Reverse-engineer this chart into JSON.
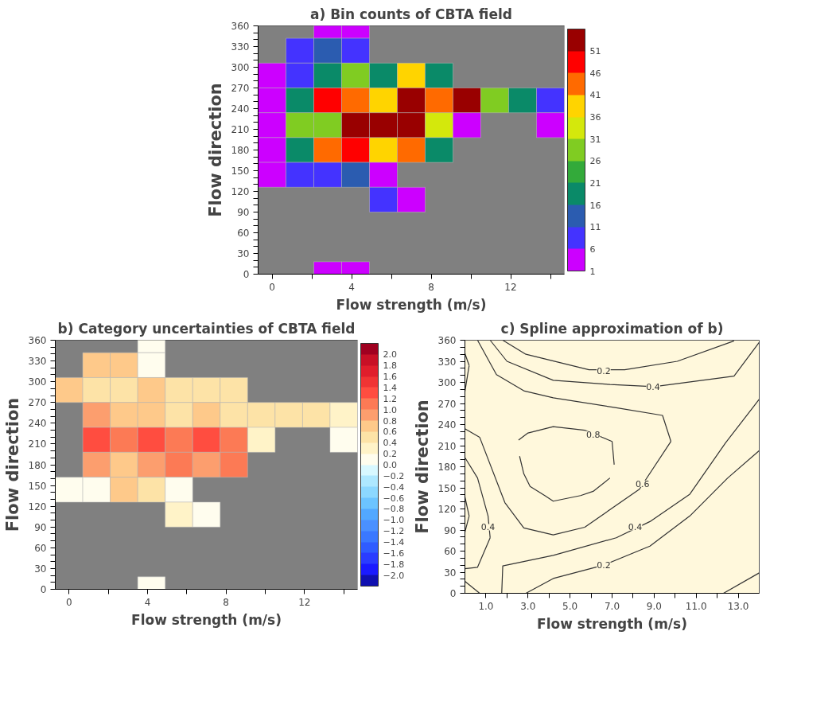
{
  "chart_data": [
    {
      "type": "scatter",
      "marker": "square",
      "title": "a) Bin counts of CBTA field",
      "xlabel": "Flow strength (m/s)",
      "ylabel": "Flow direction",
      "x": [
        2.8,
        4.2,
        1.4,
        2.8,
        4.2,
        0,
        1.4,
        2.8,
        4.2,
        5.6,
        7,
        8.4,
        0,
        1.4,
        2.8,
        4.2,
        5.6,
        7,
        8.4,
        9.8,
        11.2,
        12.6,
        14,
        0,
        1.4,
        2.8,
        4.2,
        5.6,
        7,
        8.4,
        9.8,
        14,
        0,
        1.4,
        2.8,
        4.2,
        5.6,
        7,
        8.4,
        0,
        1.4,
        2.8,
        4.2,
        5.6,
        5.6,
        7,
        2.8,
        4.2
      ],
      "values": [
        360,
        360,
        324,
        324,
        324,
        288,
        288,
        288,
        288,
        288,
        288,
        288,
        252,
        252,
        252,
        252,
        252,
        252,
        252,
        252,
        252,
        252,
        252,
        216,
        216,
        216,
        216,
        216,
        216,
        216,
        216,
        216,
        180,
        180,
        180,
        180,
        180,
        180,
        180,
        144,
        144,
        144,
        144,
        144,
        108,
        108,
        0,
        0
      ],
      "cvalues": [
        3.5,
        3.5,
        8.5,
        13.5,
        8.5,
        3.5,
        8.5,
        18.5,
        28.5,
        18.5,
        38.5,
        18.5,
        3.5,
        18.5,
        48.5,
        43.5,
        38.5,
        53.5,
        43.5,
        53.5,
        28.5,
        18.5,
        8.5,
        3.5,
        28.5,
        28.5,
        53.5,
        53.5,
        53.5,
        33.5,
        3.5,
        3.5,
        3.5,
        18.5,
        43.5,
        48.5,
        38.5,
        43.5,
        18.5,
        3.5,
        8.5,
        8.5,
        13.5,
        3.5,
        8.5,
        3.5,
        3.5,
        3.5
      ],
      "xlim": [
        -0.7,
        14.7
      ],
      "xticks": [
        0,
        {
          "value": 2,
          "label": null
        },
        4,
        {
          "value": 6,
          "label": null
        },
        8,
        {
          "value": 10,
          "label": null
        },
        12,
        {
          "value": 14,
          "label": null
        }
      ],
      "ylim": [
        0,
        360
      ],
      "yticks": [
        0,
        {
          "value": 10,
          "label": null
        },
        {
          "value": 20,
          "label": null
        },
        30,
        {
          "value": 40,
          "label": null
        },
        {
          "value": 50,
          "label": null
        },
        60,
        {
          "value": 70,
          "label": null
        },
        {
          "value": 80,
          "label": null
        },
        90,
        {
          "value": 100,
          "label": null
        },
        {
          "value": 110,
          "label": null
        },
        120,
        {
          "value": 130,
          "label": null
        },
        {
          "value": 140,
          "label": null
        },
        150,
        {
          "value": 160,
          "label": null
        },
        {
          "value": 170,
          "label": null
        },
        180,
        {
          "value": 190,
          "label": null
        },
        {
          "value": 200,
          "label": null
        },
        210,
        {
          "value": 220,
          "label": null
        },
        {
          "value": 230,
          "label": null
        },
        240,
        {
          "value": 250,
          "label": null
        },
        {
          "value": 260,
          "label": null
        },
        270,
        {
          "value": 280,
          "label": null
        },
        {
          "value": 290,
          "label": null
        },
        300,
        {
          "value": 310,
          "label": null
        },
        {
          "value": 320,
          "label": null
        },
        330,
        {
          "value": 340,
          "label": null
        },
        {
          "value": 350,
          "label": null
        },
        360
      ],
      "clim": [
        1,
        56
      ],
      "cticks": [
        1,
        6,
        11,
        16,
        21,
        26,
        31,
        36,
        41,
        46,
        51
      ]
    },
    {
      "type": "scatter",
      "marker": "square",
      "title": "b) Category uncertainties of CBTA field",
      "xlabel": "Flow strength (m/s)",
      "ylabel": "Flow direction",
      "x": [
        4.2,
        1.4,
        2.8,
        4.2,
        0,
        1.4,
        2.8,
        4.2,
        5.6,
        7,
        8.4,
        1.4,
        2.8,
        4.2,
        5.6,
        7,
        8.4,
        9.8,
        11.2,
        12.6,
        14,
        1.4,
        2.8,
        4.2,
        5.6,
        7,
        8.4,
        9.8,
        14,
        1.4,
        2.8,
        4.2,
        5.6,
        7,
        8.4,
        0,
        1.4,
        2.8,
        4.2,
        5.6,
        5.6,
        7,
        4.2
      ],
      "values": [
        360,
        324,
        324,
        324,
        288,
        288,
        288,
        288,
        288,
        288,
        288,
        252,
        252,
        252,
        252,
        252,
        252,
        252,
        252,
        252,
        252,
        216,
        216,
        216,
        216,
        216,
        216,
        216,
        216,
        180,
        180,
        180,
        180,
        180,
        180,
        144,
        144,
        144,
        144,
        144,
        108,
        108,
        0
      ],
      "cvalues": [
        0.1,
        0.7,
        0.7,
        0.1,
        0.7,
        0.5,
        0.5,
        0.7,
        0.5,
        0.5,
        0.5,
        0.9,
        0.7,
        0.7,
        0.5,
        0.7,
        0.5,
        0.5,
        0.5,
        0.5,
        0.3,
        1.3,
        1.1,
        1.3,
        1.1,
        1.3,
        1.1,
        0.3,
        0.1,
        0.9,
        0.7,
        0.9,
        1.1,
        0.9,
        1.1,
        0.1,
        0.1,
        0.7,
        0.5,
        0.1,
        0.3,
        0.1,
        0.1
      ],
      "xlim": [
        -0.7,
        14.7
      ],
      "xticks": [
        0,
        {
          "value": 2,
          "label": null
        },
        4,
        {
          "value": 6,
          "label": null
        },
        8,
        {
          "value": 10,
          "label": null
        },
        12,
        {
          "value": 14,
          "label": null
        }
      ],
      "ylim": [
        0,
        360
      ],
      "yticks": [
        0,
        {
          "value": 10,
          "label": null
        },
        {
          "value": 20,
          "label": null
        },
        30,
        {
          "value": 40,
          "label": null
        },
        {
          "value": 50,
          "label": null
        },
        60,
        {
          "value": 70,
          "label": null
        },
        {
          "value": 80,
          "label": null
        },
        90,
        {
          "value": 100,
          "label": null
        },
        {
          "value": 110,
          "label": null
        },
        120,
        {
          "value": 130,
          "label": null
        },
        {
          "value": 140,
          "label": null
        },
        150,
        {
          "value": 160,
          "label": null
        },
        {
          "value": 170,
          "label": null
        },
        180,
        {
          "value": 190,
          "label": null
        },
        {
          "value": 200,
          "label": null
        },
        210,
        {
          "value": 220,
          "label": null
        },
        {
          "value": 230,
          "label": null
        },
        240,
        {
          "value": 250,
          "label": null
        },
        {
          "value": 260,
          "label": null
        },
        270,
        {
          "value": 280,
          "label": null
        },
        {
          "value": 290,
          "label": null
        },
        300,
        {
          "value": 310,
          "label": null
        },
        {
          "value": 320,
          "label": null
        },
        330,
        {
          "value": 340,
          "label": null
        },
        {
          "value": 350,
          "label": null
        },
        360
      ],
      "clim": [
        -2.2,
        2.2
      ],
      "cticks": [
        {
          "value": -2,
          "label": "−2.0"
        },
        {
          "value": -1.8,
          "label": "−1.8"
        },
        {
          "value": -1.6,
          "label": "−1.6"
        },
        {
          "value": -1.4,
          "label": "−1.4"
        },
        {
          "value": -1.2,
          "label": "−1.2"
        },
        {
          "value": -1,
          "label": "−1.0"
        },
        {
          "value": -0.8,
          "label": "−0.8"
        },
        {
          "value": -0.6,
          "label": "−0.6"
        },
        {
          "value": -0.4,
          "label": "−0.4"
        },
        {
          "value": -0.2,
          "label": "−0.2"
        },
        {
          "value": 0,
          "label": "0.0"
        },
        {
          "value": 0.2,
          "label": "0.2"
        },
        {
          "value": 0.4,
          "label": "0.4"
        },
        {
          "value": 0.6,
          "label": "0.6"
        },
        {
          "value": 0.8,
          "label": "0.8"
        },
        {
          "value": 1,
          "label": "1.0"
        },
        {
          "value": 1.2,
          "label": "1.2"
        },
        {
          "value": 1.4,
          "label": "1.4"
        },
        {
          "value": 1.6,
          "label": "1.6"
        },
        {
          "value": 1.8,
          "label": "1.8"
        },
        {
          "value": 2,
          "label": "2.0"
        }
      ]
    },
    {
      "type": "line",
      "title": "c) Spline approximation of b)",
      "xlabel": "Flow strength (m/s)",
      "ylabel": "Flow direction",
      "xlim": [
        0,
        14
      ],
      "xticks": [
        {
          "value": 1,
          "label": "1.0"
        },
        {
          "value": 2,
          "label": null
        },
        {
          "value": 3,
          "label": "3.0"
        },
        {
          "value": 4,
          "label": null
        },
        {
          "value": 5,
          "label": "5.0"
        },
        {
          "value": 6,
          "label": null
        },
        {
          "value": 7,
          "label": "7.0"
        },
        {
          "value": 8,
          "label": null
        },
        {
          "value": 9,
          "label": "9.0"
        },
        {
          "value": 10,
          "label": null
        },
        {
          "value": 11,
          "label": "11.0"
        },
        {
          "value": 12,
          "label": null
        },
        {
          "value": 13,
          "label": "13.0"
        }
      ],
      "ylim": [
        0,
        360
      ],
      "yticks": [
        0,
        {
          "value": 10,
          "label": null
        },
        {
          "value": 20,
          "label": null
        },
        30,
        {
          "value": 40,
          "label": null
        },
        {
          "value": 50,
          "label": null
        },
        60,
        {
          "value": 70,
          "label": null
        },
        {
          "value": 80,
          "label": null
        },
        90,
        {
          "value": 100,
          "label": null
        },
        {
          "value": 110,
          "label": null
        },
        120,
        {
          "value": 130,
          "label": null
        },
        {
          "value": 140,
          "label": null
        },
        150,
        {
          "value": 160,
          "label": null
        },
        {
          "value": 170,
          "label": null
        },
        180,
        {
          "value": 190,
          "label": null
        },
        {
          "value": 200,
          "label": null
        },
        210,
        {
          "value": 220,
          "label": null
        },
        {
          "value": 230,
          "label": null
        },
        240,
        {
          "value": 250,
          "label": null
        },
        {
          "value": 260,
          "label": null
        },
        270,
        {
          "value": 280,
          "label": null
        },
        {
          "value": 290,
          "label": null
        },
        300,
        {
          "value": 310,
          "label": null
        },
        {
          "value": 320,
          "label": null
        },
        330,
        {
          "value": 340,
          "label": null
        },
        {
          "value": 350,
          "label": null
        },
        360
      ],
      "series": [
        {
          "type": "line",
          "color": "#333333",
          "x": [
            1.8,
            2.9,
            5.9,
            7.6,
            10.1,
            12.8
          ],
          "values": [
            360,
            340,
            318,
            318,
            330,
            359
          ]
        },
        {
          "type": "line",
          "color": "#333333",
          "x": [
            1.2,
            2.0,
            4.2,
            6.9,
            9.0,
            12.8,
            14
          ],
          "values": [
            360,
            330,
            303,
            297,
            294,
            309,
            357
          ]
        },
        {
          "type": "line",
          "color": "#333333",
          "x": [
            0,
            0.7,
            1.9,
            2.8,
            4.2,
            5.7,
            8.3,
            9.8
          ],
          "values": [
            234,
            222,
            129,
            93,
            83,
            94,
            148,
            216
          ]
        },
        {
          "type": "line",
          "color": "#333333",
          "x": [
            0.6,
            1.5,
            2.8,
            4.2,
            7.2,
            9.4,
            9.8
          ],
          "values": [
            360,
            311,
            288,
            278,
            264,
            253,
            216
          ]
        },
        {
          "type": "line",
          "color": "#333333",
          "x": [
            2.55,
            3.0,
            4.2,
            5.7,
            7.0,
            7.1
          ],
          "values": [
            218,
            228,
            237,
            232,
            216,
            183
          ]
        },
        {
          "type": "line",
          "color": "#333333",
          "x": [
            2.6,
            2.8,
            3.1,
            3.8,
            4.2,
            5.5,
            6.1,
            6.9
          ],
          "values": [
            195,
            170,
            152,
            139,
            131,
            139,
            145,
            164
          ]
        },
        {
          "type": "line",
          "color": "#333333",
          "x": [
            0,
            0.2
          ],
          "values": [
            341,
            324
          ]
        },
        {
          "type": "line",
          "color": "#333333",
          "x": [
            0,
            0.2
          ],
          "values": [
            287,
            324
          ]
        },
        {
          "type": "line",
          "color": "#333333",
          "x": [
            1.75,
            1.8,
            4.2,
            7.2,
            8.8,
            10.7,
            12.4,
            14
          ],
          "values": [
            0,
            39,
            54,
            79,
            102,
            141,
            214,
            276
          ]
        },
        {
          "type": "line",
          "color": "#333333",
          "x": [
            2.9,
            4.2,
            6.6,
            8.8,
            10.7,
            12.5,
            14
          ],
          "values": [
            0,
            21,
            40,
            67,
            110,
            164,
            203
          ]
        },
        {
          "type": "line",
          "color": "#333333",
          "x": [
            0,
            0.6,
            1.1,
            1.2
          ],
          "values": [
            193,
            164,
            110,
            79
          ]
        },
        {
          "type": "line",
          "color": "#333333",
          "x": [
            0,
            0.6,
            1.2
          ],
          "values": [
            35,
            37,
            79
          ]
        },
        {
          "type": "line",
          "color": "#333333",
          "x": [
            0,
            0.2
          ],
          "values": [
            137,
            110
          ]
        },
        {
          "type": "line",
          "color": "#333333",
          "x": [
            0,
            0.2
          ],
          "values": [
            87,
            110
          ]
        },
        {
          "type": "line",
          "color": "#333333",
          "x": [
            0,
            0.7
          ],
          "values": [
            17,
            0
          ]
        },
        {
          "type": "line",
          "color": "#333333",
          "x": [
            12.3,
            14
          ],
          "values": [
            0,
            29
          ]
        }
      ],
      "annotations": [
        {
          "text": "0.2",
          "x": 6.6,
          "y": 316
        },
        {
          "text": "0.4",
          "x": 8.95,
          "y": 294
        },
        {
          "text": "0.8",
          "x": 6.1,
          "y": 226
        },
        {
          "text": "0.6",
          "x": 8.45,
          "y": 156
        },
        {
          "text": "0.4",
          "x": 8.1,
          "y": 94
        },
        {
          "text": "0.2",
          "x": 6.6,
          "y": 40
        },
        {
          "text": "0.4",
          "x": 1.1,
          "y": 94
        }
      ]
    }
  ]
}
